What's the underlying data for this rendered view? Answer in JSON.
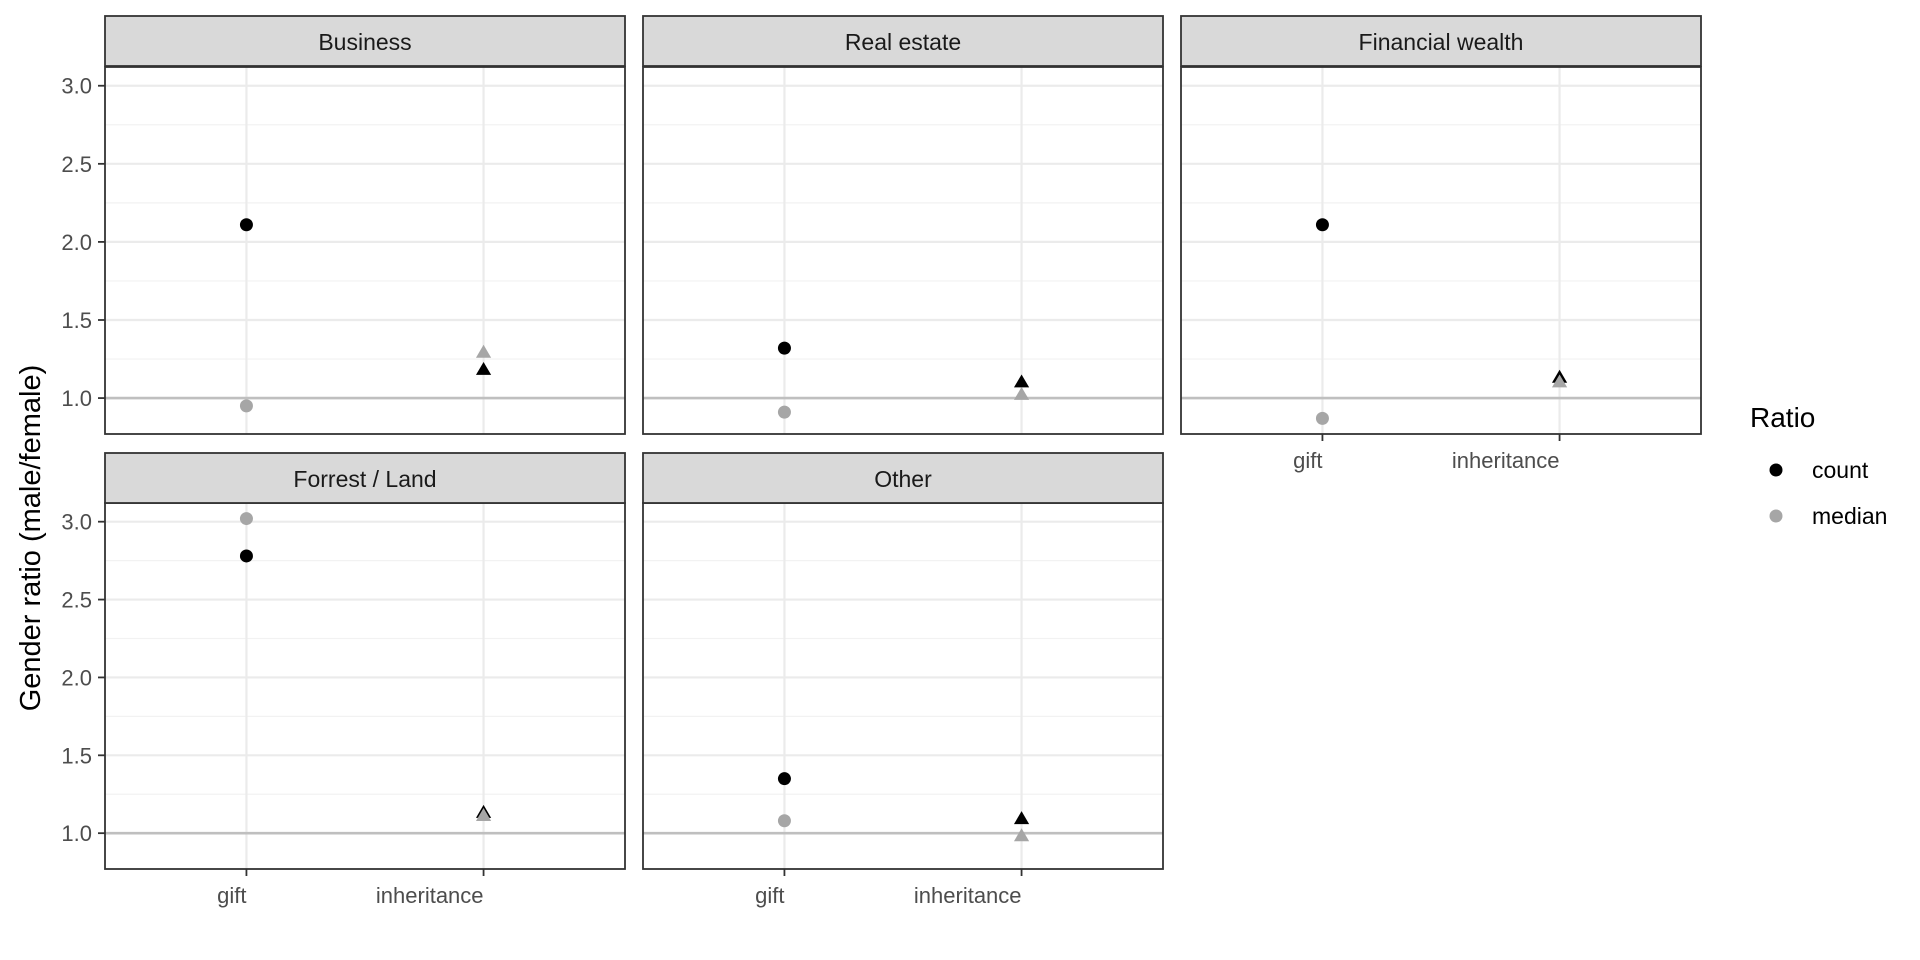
{
  "chart_data": {
    "type": "scatter",
    "ylabel": "Gender ratio (male/female)",
    "xlabel": "",
    "x_categories": [
      "gift",
      "inheritance"
    ],
    "y_ticks": [
      "1.0",
      "1.5",
      "2.0",
      "2.5",
      "3.0"
    ],
    "ylim": [
      0.77,
      3.12
    ],
    "reference_line": 1.0,
    "grid": true,
    "legend": {
      "title": "Ratio",
      "position": "right",
      "entries": [
        {
          "label": "count",
          "color": "#000000"
        },
        {
          "label": "median",
          "color": "#a6a6a6"
        }
      ]
    },
    "shapes": {
      "gift": "circle",
      "inheritance": "triangle"
    },
    "panels": [
      {
        "title": "Business",
        "series": [
          {
            "name": "count",
            "values": {
              "gift": 2.11,
              "inheritance": 1.18
            }
          },
          {
            "name": "median",
            "values": {
              "gift": 0.95,
              "inheritance": 1.29
            }
          }
        ]
      },
      {
        "title": "Real estate",
        "series": [
          {
            "name": "count",
            "values": {
              "gift": 1.32,
              "inheritance": 1.1
            }
          },
          {
            "name": "median",
            "values": {
              "gift": 0.91,
              "inheritance": 1.02
            }
          }
        ]
      },
      {
        "title": "Financial wealth",
        "series": [
          {
            "name": "count",
            "values": {
              "gift": 2.11,
              "inheritance": 1.13
            }
          },
          {
            "name": "median",
            "values": {
              "gift": 0.87,
              "inheritance": 1.1
            }
          }
        ]
      },
      {
        "title": "Forrest / Land",
        "series": [
          {
            "name": "count",
            "values": {
              "gift": 2.78,
              "inheritance": 1.13
            }
          },
          {
            "name": "median",
            "values": {
              "gift": 3.02,
              "inheritance": 1.11
            }
          }
        ]
      },
      {
        "title": "Other",
        "series": [
          {
            "name": "count",
            "values": {
              "gift": 1.35,
              "inheritance": 1.09
            }
          },
          {
            "name": "median",
            "values": {
              "gift": 1.08,
              "inheritance": 0.98
            }
          }
        ]
      }
    ]
  }
}
